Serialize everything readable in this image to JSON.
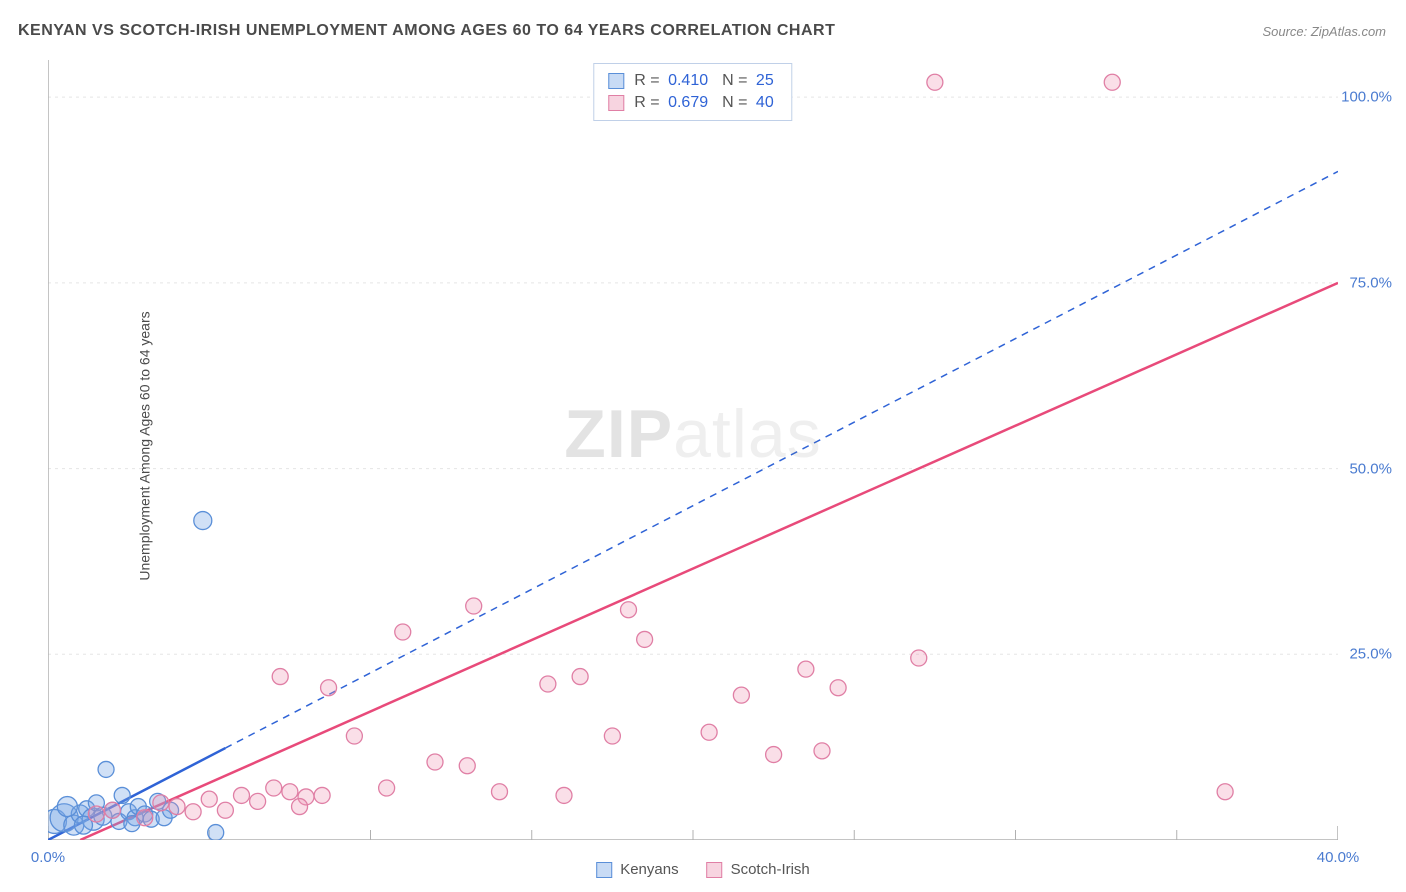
{
  "title": "KENYAN VS SCOTCH-IRISH UNEMPLOYMENT AMONG AGES 60 TO 64 YEARS CORRELATION CHART",
  "source_label": "Source: ZipAtlas.com",
  "ylabel": "Unemployment Among Ages 60 to 64 years",
  "watermark_bold": "ZIP",
  "watermark_light": "atlas",
  "chart": {
    "type": "scatter",
    "background_color": "#ffffff",
    "grid_color": "#e5e5e5",
    "axis_color": "#b0b0b0",
    "tick_color": "#b0b0b0",
    "xlim": [
      0,
      40
    ],
    "ylim": [
      0,
      105
    ],
    "xtick_labels": [
      {
        "v": 0,
        "label": "0.0%"
      },
      {
        "v": 40,
        "label": "40.0%"
      }
    ],
    "xtick_minor": [
      5,
      10,
      15,
      20,
      25,
      30,
      35
    ],
    "ytick_labels": [
      {
        "v": 25,
        "label": "25.0%"
      },
      {
        "v": 50,
        "label": "50.0%"
      },
      {
        "v": 75,
        "label": "75.0%"
      },
      {
        "v": 100,
        "label": "100.0%"
      }
    ],
    "marker_default_r": 8,
    "series": [
      {
        "id": "kenyans",
        "label": "Kenyans",
        "color_fill": "rgba(120,165,230,0.35)",
        "color_stroke": "#5a8fd8",
        "swatch_fill": "#c8dbf5",
        "swatch_border": "#5a8fd8",
        "R": "0.410",
        "N": "25",
        "trend": {
          "x1": 0,
          "y1": 0,
          "x2": 40,
          "y2": 90,
          "solid_until_x": 5.5,
          "color": "#2f63d6",
          "width": 2,
          "dash": "7 6"
        },
        "points": [
          {
            "x": 0.2,
            "y": 2.5,
            "r": 12
          },
          {
            "x": 0.5,
            "y": 3.0,
            "r": 14
          },
          {
            "x": 0.8,
            "y": 2.0,
            "r": 10
          },
          {
            "x": 1.0,
            "y": 3.5,
            "r": 9
          },
          {
            "x": 1.2,
            "y": 4.2,
            "r": 8
          },
          {
            "x": 1.4,
            "y": 2.8,
            "r": 11
          },
          {
            "x": 1.5,
            "y": 5.0,
            "r": 8
          },
          {
            "x": 1.7,
            "y": 3.2,
            "r": 9
          },
          {
            "x": 1.8,
            "y": 9.5,
            "r": 8
          },
          {
            "x": 2.0,
            "y": 4.0,
            "r": 8
          },
          {
            "x": 2.2,
            "y": 2.5,
            "r": 8
          },
          {
            "x": 2.3,
            "y": 6.0,
            "r": 8
          },
          {
            "x": 2.5,
            "y": 3.8,
            "r": 8
          },
          {
            "x": 2.7,
            "y": 3.0,
            "r": 8
          },
          {
            "x": 2.8,
            "y": 4.5,
            "r": 8
          },
          {
            "x": 3.0,
            "y": 3.5,
            "r": 8
          },
          {
            "x": 3.2,
            "y": 2.8,
            "r": 8
          },
          {
            "x": 3.4,
            "y": 5.2,
            "r": 8
          },
          {
            "x": 3.6,
            "y": 3.0,
            "r": 8
          },
          {
            "x": 3.8,
            "y": 4.0,
            "r": 8
          },
          {
            "x": 4.8,
            "y": 43.0,
            "r": 9
          },
          {
            "x": 5.2,
            "y": 1.0,
            "r": 8
          },
          {
            "x": 0.6,
            "y": 4.5,
            "r": 10
          },
          {
            "x": 1.1,
            "y": 2.0,
            "r": 9
          },
          {
            "x": 2.6,
            "y": 2.2,
            "r": 8
          }
        ]
      },
      {
        "id": "scotch-irish",
        "label": "Scotch-Irish",
        "color_fill": "rgba(240,150,180,0.30)",
        "color_stroke": "#e07fa5",
        "swatch_fill": "#f7d4e0",
        "swatch_border": "#e07fa5",
        "R": "0.679",
        "N": "40",
        "trend": {
          "x1": 1.0,
          "y1": 0,
          "x2": 40,
          "y2": 75,
          "solid_until_x": 40,
          "color": "#e84a7a",
          "width": 2.5,
          "dash": null
        },
        "points": [
          {
            "x": 1.5,
            "y": 3.5
          },
          {
            "x": 2.0,
            "y": 4.0
          },
          {
            "x": 3.0,
            "y": 3.0
          },
          {
            "x": 3.5,
            "y": 5.0
          },
          {
            "x": 4.0,
            "y": 4.5
          },
          {
            "x": 4.5,
            "y": 3.8
          },
          {
            "x": 5.0,
            "y": 5.5
          },
          {
            "x": 5.5,
            "y": 4.0
          },
          {
            "x": 6.0,
            "y": 6.0
          },
          {
            "x": 6.5,
            "y": 5.2
          },
          {
            "x": 7.0,
            "y": 7.0
          },
          {
            "x": 7.2,
            "y": 22.0
          },
          {
            "x": 7.5,
            "y": 6.5
          },
          {
            "x": 8.0,
            "y": 5.8
          },
          {
            "x": 8.5,
            "y": 6.0
          },
          {
            "x": 8.7,
            "y": 20.5
          },
          {
            "x": 9.5,
            "y": 14.0
          },
          {
            "x": 10.5,
            "y": 7.0
          },
          {
            "x": 11.0,
            "y": 28.0
          },
          {
            "x": 12.0,
            "y": 10.5
          },
          {
            "x": 13.0,
            "y": 10.0
          },
          {
            "x": 13.2,
            "y": 31.5
          },
          {
            "x": 14.0,
            "y": 6.5
          },
          {
            "x": 15.5,
            "y": 21.0
          },
          {
            "x": 16.0,
            "y": 6.0
          },
          {
            "x": 16.5,
            "y": 22.0
          },
          {
            "x": 17.5,
            "y": 14.0
          },
          {
            "x": 18.0,
            "y": 31.0
          },
          {
            "x": 18.5,
            "y": 27.0
          },
          {
            "x": 20.5,
            "y": 14.5
          },
          {
            "x": 21.5,
            "y": 19.5
          },
          {
            "x": 22.5,
            "y": 11.5
          },
          {
            "x": 23.5,
            "y": 23.0
          },
          {
            "x": 24.0,
            "y": 12.0
          },
          {
            "x": 24.5,
            "y": 20.5
          },
          {
            "x": 27.0,
            "y": 24.5
          },
          {
            "x": 27.5,
            "y": 102.0
          },
          {
            "x": 33.0,
            "y": 102.0
          },
          {
            "x": 36.5,
            "y": 6.5
          },
          {
            "x": 7.8,
            "y": 4.5
          }
        ]
      }
    ]
  },
  "legend_series": [
    {
      "label": "Kenyans",
      "swatch_fill": "#c8dbf5",
      "swatch_border": "#5a8fd8"
    },
    {
      "label": "Scotch-Irish",
      "swatch_fill": "#f7d4e0",
      "swatch_border": "#e07fa5"
    }
  ]
}
